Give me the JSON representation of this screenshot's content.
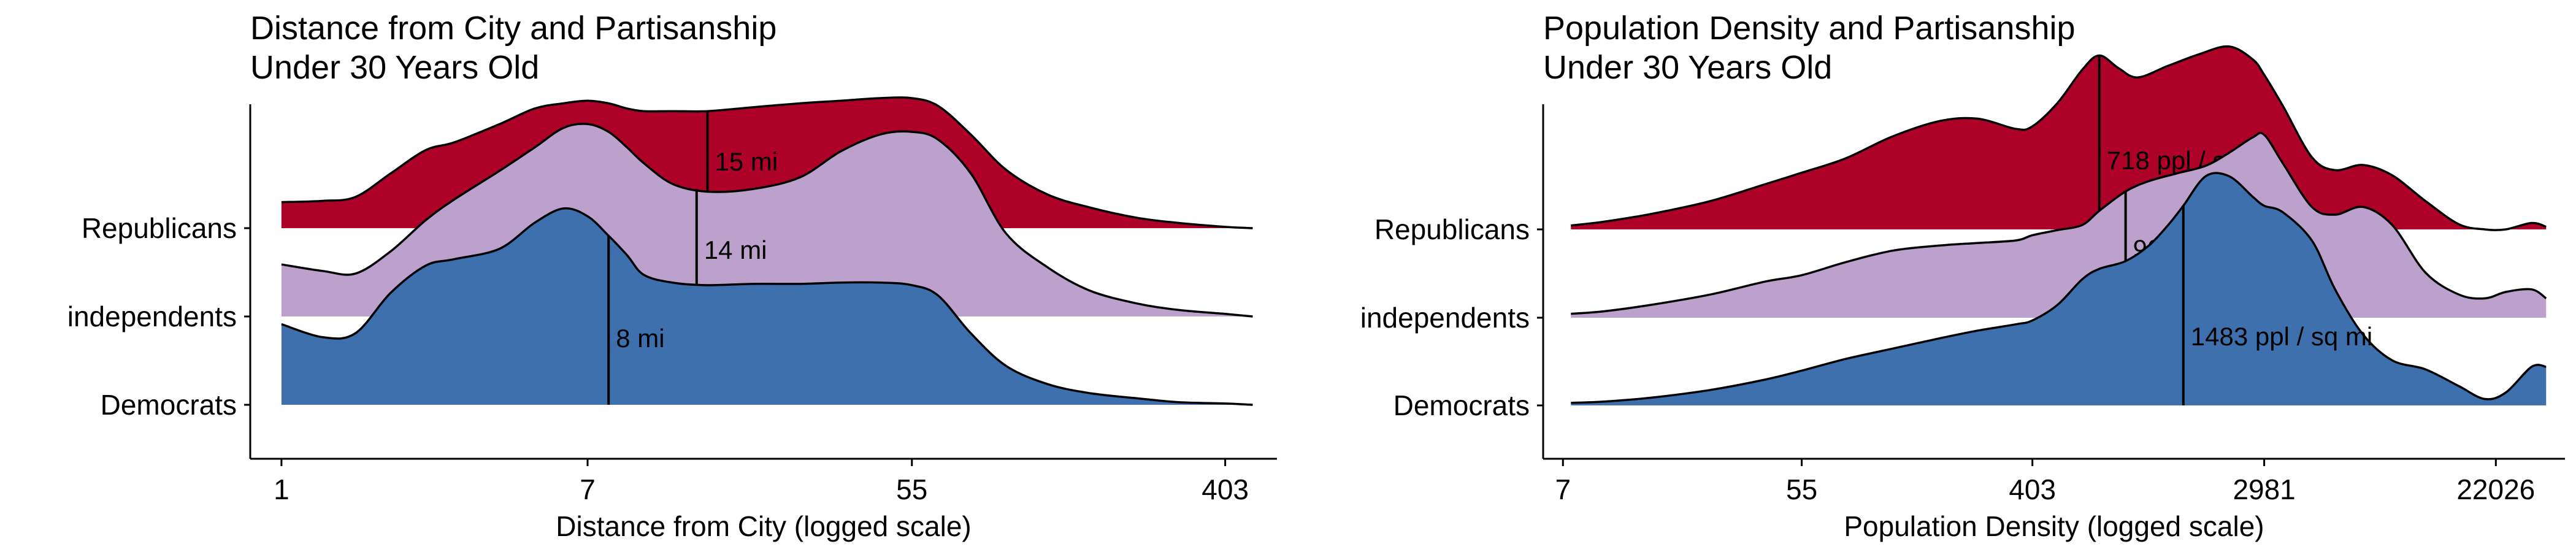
{
  "chart_data": [
    {
      "type": "ridgeline",
      "title": "Distance from City and Partisanship",
      "subtitle": "Under 30 Years Old",
      "xlabel": "Distance from City (logged scale)",
      "x_scale": "log",
      "xlim": [
        0.82,
        560
      ],
      "x_ticks": [
        1,
        7,
        55,
        403
      ],
      "x_tick_labels": [
        "1",
        "7",
        "55",
        "403"
      ],
      "categories": [
        "Republicans",
        "independents",
        "Democrats"
      ],
      "series": [
        {
          "name": "Republicans",
          "color": "#AE0127",
          "median": 15,
          "median_label": "15 mi",
          "density": [
            [
              1,
              0.2
            ],
            [
              1.3,
              0.21
            ],
            [
              1.6,
              0.24
            ],
            [
              2,
              0.42
            ],
            [
              2.5,
              0.6
            ],
            [
              3,
              0.66
            ],
            [
              4,
              0.8
            ],
            [
              5,
              0.92
            ],
            [
              6,
              0.96
            ],
            [
              7,
              0.98
            ],
            [
              8,
              0.96
            ],
            [
              9,
              0.92
            ],
            [
              10,
              0.9
            ],
            [
              12,
              0.9
            ],
            [
              15,
              0.9
            ],
            [
              20,
              0.93
            ],
            [
              27,
              0.96
            ],
            [
              35,
              0.98
            ],
            [
              45,
              1.0
            ],
            [
              55,
              1.0
            ],
            [
              65,
              0.94
            ],
            [
              80,
              0.72
            ],
            [
              100,
              0.45
            ],
            [
              130,
              0.26
            ],
            [
              170,
              0.16
            ],
            [
              230,
              0.08
            ],
            [
              300,
              0.04
            ],
            [
              403,
              0.01
            ],
            [
              480,
              0.0
            ]
          ]
        },
        {
          "name": "independents",
          "color": "#BBA1CC",
          "median": 14,
          "median_label": "14 mi",
          "density": [
            [
              1,
              0.4
            ],
            [
              1.3,
              0.35
            ],
            [
              1.6,
              0.33
            ],
            [
              2,
              0.5
            ],
            [
              2.5,
              0.74
            ],
            [
              3,
              0.9
            ],
            [
              4,
              1.12
            ],
            [
              5,
              1.3
            ],
            [
              6,
              1.45
            ],
            [
              7,
              1.48
            ],
            [
              8,
              1.42
            ],
            [
              9,
              1.3
            ],
            [
              10,
              1.18
            ],
            [
              12,
              1.02
            ],
            [
              15,
              0.96
            ],
            [
              20,
              0.98
            ],
            [
              27,
              1.07
            ],
            [
              35,
              1.27
            ],
            [
              45,
              1.4
            ],
            [
              55,
              1.42
            ],
            [
              65,
              1.36
            ],
            [
              80,
              1.1
            ],
            [
              100,
              0.64
            ],
            [
              130,
              0.38
            ],
            [
              170,
              0.2
            ],
            [
              230,
              0.1
            ],
            [
              300,
              0.05
            ],
            [
              403,
              0.02
            ],
            [
              480,
              0.0
            ]
          ]
        },
        {
          "name": "Democrats",
          "color": "#3F70AE",
          "median": 8,
          "median_label": "8 mi",
          "density": [
            [
              1,
              0.62
            ],
            [
              1.3,
              0.52
            ],
            [
              1.6,
              0.55
            ],
            [
              2,
              0.86
            ],
            [
              2.5,
              1.07
            ],
            [
              3,
              1.12
            ],
            [
              4,
              1.2
            ],
            [
              5,
              1.4
            ],
            [
              6,
              1.51
            ],
            [
              7,
              1.45
            ],
            [
              8,
              1.3
            ],
            [
              9,
              1.15
            ],
            [
              10,
              1.0
            ],
            [
              12,
              0.94
            ],
            [
              15,
              0.92
            ],
            [
              20,
              0.93
            ],
            [
              27,
              0.93
            ],
            [
              35,
              0.94
            ],
            [
              45,
              0.94
            ],
            [
              55,
              0.92
            ],
            [
              65,
              0.84
            ],
            [
              80,
              0.55
            ],
            [
              100,
              0.3
            ],
            [
              130,
              0.16
            ],
            [
              170,
              0.09
            ],
            [
              230,
              0.05
            ],
            [
              300,
              0.02
            ],
            [
              403,
              0.01
            ],
            [
              480,
              0.0
            ]
          ]
        }
      ]
    },
    {
      "type": "ridgeline",
      "title": "Population Density and Partisanship",
      "subtitle": "Under 30 Years Old",
      "xlabel": "Population Density (logged scale)",
      "x_scale": "log",
      "xlim": [
        5.9,
        40000
      ],
      "x_ticks": [
        7,
        55,
        403,
        2981,
        22026
      ],
      "x_tick_labels": [
        "7",
        "55",
        "403",
        "2981",
        "22026"
      ],
      "categories": [
        "Republicans",
        "independents",
        "Democrats"
      ],
      "series": [
        {
          "name": "Republicans",
          "color": "#AE0127",
          "median": 718,
          "median_label": "718 ppl / sq mi",
          "density": [
            [
              7.5,
              0.03
            ],
            [
              10,
              0.06
            ],
            [
              15,
              0.12
            ],
            [
              25,
              0.22
            ],
            [
              40,
              0.35
            ],
            [
              55,
              0.44
            ],
            [
              80,
              0.55
            ],
            [
              120,
              0.72
            ],
            [
              180,
              0.84
            ],
            [
              250,
              0.86
            ],
            [
              350,
              0.78
            ],
            [
              403,
              0.8
            ],
            [
              500,
              0.98
            ],
            [
              620,
              1.24
            ],
            [
              718,
              1.35
            ],
            [
              850,
              1.25
            ],
            [
              1000,
              1.18
            ],
            [
              1300,
              1.27
            ],
            [
              1700,
              1.36
            ],
            [
              2200,
              1.42
            ],
            [
              2700,
              1.32
            ],
            [
              2981,
              1.2
            ],
            [
              3500,
              0.96
            ],
            [
              4500,
              0.56
            ],
            [
              5500,
              0.46
            ],
            [
              7000,
              0.5
            ],
            [
              9000,
              0.42
            ],
            [
              12000,
              0.22
            ],
            [
              16000,
              0.04
            ],
            [
              20000,
              0.0
            ],
            [
              24000,
              0.0
            ],
            [
              30000,
              0.05
            ],
            [
              34000,
              0.02
            ]
          ]
        },
        {
          "name": "independents",
          "color": "#BBA1CC",
          "median": 901,
          "median_label": "901 ppl / sq mi",
          "density": [
            [
              7.5,
              0.03
            ],
            [
              10,
              0.05
            ],
            [
              15,
              0.1
            ],
            [
              25,
              0.18
            ],
            [
              40,
              0.28
            ],
            [
              55,
              0.33
            ],
            [
              80,
              0.43
            ],
            [
              120,
              0.52
            ],
            [
              180,
              0.56
            ],
            [
              250,
              0.58
            ],
            [
              350,
              0.6
            ],
            [
              403,
              0.64
            ],
            [
              500,
              0.68
            ],
            [
              620,
              0.72
            ],
            [
              718,
              0.83
            ],
            [
              900,
              0.98
            ],
            [
              1100,
              1.06
            ],
            [
              1400,
              1.12
            ],
            [
              1800,
              1.18
            ],
            [
              2200,
              1.28
            ],
            [
              2700,
              1.4
            ],
            [
              2981,
              1.42
            ],
            [
              3500,
              1.2
            ],
            [
              4500,
              0.86
            ],
            [
              5500,
              0.8
            ],
            [
              7000,
              0.86
            ],
            [
              9000,
              0.72
            ],
            [
              12000,
              0.35
            ],
            [
              16000,
              0.18
            ],
            [
              20000,
              0.15
            ],
            [
              24000,
              0.2
            ],
            [
              30000,
              0.22
            ],
            [
              34000,
              0.15
            ]
          ]
        },
        {
          "name": "Democrats",
          "color": "#3F70AE",
          "median": 1483,
          "median_label": "1483 ppl / sq mi",
          "density": [
            [
              7.5,
              0.02
            ],
            [
              10,
              0.03
            ],
            [
              15,
              0.06
            ],
            [
              25,
              0.12
            ],
            [
              40,
              0.2
            ],
            [
              55,
              0.27
            ],
            [
              80,
              0.36
            ],
            [
              120,
              0.44
            ],
            [
              180,
              0.52
            ],
            [
              250,
              0.58
            ],
            [
              350,
              0.63
            ],
            [
              403,
              0.66
            ],
            [
              500,
              0.78
            ],
            [
              620,
              0.98
            ],
            [
              718,
              1.06
            ],
            [
              900,
              1.12
            ],
            [
              1100,
              1.24
            ],
            [
              1300,
              1.4
            ],
            [
              1483,
              1.55
            ],
            [
              1800,
              1.78
            ],
            [
              2200,
              1.78
            ],
            [
              2700,
              1.62
            ],
            [
              2981,
              1.55
            ],
            [
              3500,
              1.5
            ],
            [
              4500,
              1.28
            ],
            [
              5500,
              0.9
            ],
            [
              7000,
              0.55
            ],
            [
              9000,
              0.35
            ],
            [
              12000,
              0.28
            ],
            [
              16000,
              0.15
            ],
            [
              20000,
              0.05
            ],
            [
              24000,
              0.1
            ],
            [
              30000,
              0.3
            ],
            [
              34000,
              0.3
            ]
          ]
        }
      ]
    }
  ]
}
